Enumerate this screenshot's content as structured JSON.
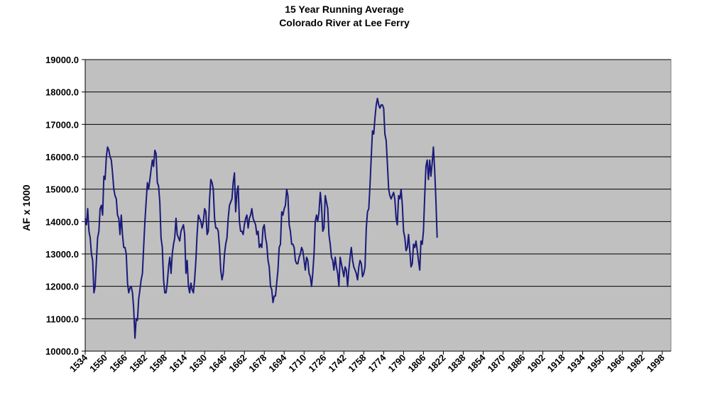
{
  "chart_data": {
    "type": "line",
    "title": "15  Year Running Average",
    "subtitle": "Colorado River at Lee Ferry",
    "ylabel": "AF x 1000",
    "xlabel": "",
    "xlim": [
      1534,
      2005
    ],
    "ylim": [
      10000,
      19000
    ],
    "y_ticks": [
      "10000.0",
      "11000.0",
      "12000.0",
      "13000.0",
      "14000.0",
      "15000.0",
      "16000.0",
      "17000.0",
      "18000.0",
      "19000.0"
    ],
    "x_ticks": [
      "1534",
      "1550",
      "1566",
      "1582",
      "1598",
      "1614",
      "1630",
      "1646",
      "1662",
      "1678",
      "1694",
      "1710",
      "1726",
      "1742",
      "1758",
      "1774",
      "1790",
      "1806",
      "1822",
      "1838",
      "1854",
      "1870",
      "1886",
      "1902",
      "1918",
      "1934",
      "1950",
      "1966",
      "1982",
      "1998"
    ],
    "grid": "horizontal",
    "plot_background": "#c0c0c0",
    "line_color": "#1a1a7a",
    "series": [
      {
        "points": [
          [
            1534,
            14100
          ],
          [
            1535,
            13900
          ],
          [
            1536,
            14400
          ],
          [
            1537,
            13700
          ],
          [
            1538,
            13500
          ],
          [
            1539,
            13000
          ],
          [
            1540,
            12800
          ],
          [
            1541,
            11800
          ],
          [
            1542,
            12000
          ],
          [
            1543,
            12800
          ],
          [
            1544,
            13500
          ],
          [
            1545,
            13700
          ],
          [
            1546,
            14400
          ],
          [
            1547,
            14500
          ],
          [
            1548,
            14200
          ],
          [
            1549,
            15400
          ],
          [
            1550,
            15300
          ],
          [
            1551,
            16000
          ],
          [
            1552,
            16300
          ],
          [
            1553,
            16200
          ],
          [
            1554,
            16000
          ],
          [
            1555,
            15900
          ],
          [
            1556,
            15500
          ],
          [
            1557,
            15000
          ],
          [
            1558,
            14800
          ],
          [
            1559,
            14700
          ],
          [
            1560,
            14200
          ],
          [
            1561,
            14100
          ],
          [
            1562,
            13600
          ],
          [
            1563,
            14200
          ],
          [
            1564,
            13600
          ],
          [
            1565,
            13200
          ],
          [
            1566,
            13200
          ],
          [
            1567,
            13000
          ],
          [
            1568,
            12100
          ],
          [
            1569,
            11800
          ],
          [
            1570,
            11950
          ],
          [
            1571,
            12000
          ],
          [
            1572,
            11800
          ],
          [
            1573,
            11300
          ],
          [
            1574,
            10400
          ],
          [
            1575,
            11000
          ],
          [
            1576,
            10950
          ],
          [
            1577,
            11600
          ],
          [
            1578,
            11900
          ],
          [
            1579,
            12200
          ],
          [
            1580,
            12400
          ],
          [
            1581,
            13200
          ],
          [
            1582,
            14000
          ],
          [
            1583,
            14600
          ],
          [
            1584,
            15200
          ],
          [
            1585,
            15000
          ],
          [
            1586,
            15300
          ],
          [
            1587,
            15600
          ],
          [
            1588,
            15900
          ],
          [
            1589,
            15700
          ],
          [
            1590,
            16200
          ],
          [
            1591,
            16100
          ],
          [
            1592,
            15200
          ],
          [
            1593,
            15100
          ],
          [
            1594,
            14600
          ],
          [
            1595,
            13500
          ],
          [
            1596,
            13200
          ],
          [
            1597,
            12200
          ],
          [
            1598,
            11800
          ],
          [
            1599,
            11800
          ],
          [
            1600,
            12100
          ],
          [
            1601,
            12600
          ],
          [
            1602,
            12900
          ],
          [
            1603,
            12400
          ],
          [
            1604,
            13000
          ],
          [
            1605,
            13300
          ],
          [
            1606,
            13500
          ],
          [
            1607,
            14100
          ],
          [
            1608,
            13600
          ],
          [
            1609,
            13500
          ],
          [
            1610,
            13400
          ],
          [
            1611,
            13700
          ],
          [
            1612,
            13800
          ],
          [
            1613,
            13900
          ],
          [
            1614,
            13600
          ],
          [
            1615,
            12400
          ],
          [
            1616,
            12800
          ],
          [
            1617,
            12000
          ],
          [
            1618,
            11800
          ],
          [
            1619,
            12100
          ],
          [
            1620,
            11900
          ],
          [
            1621,
            11800
          ],
          [
            1622,
            12200
          ],
          [
            1623,
            12800
          ],
          [
            1624,
            13600
          ],
          [
            1625,
            14200
          ],
          [
            1626,
            14100
          ],
          [
            1627,
            14000
          ],
          [
            1628,
            13800
          ],
          [
            1629,
            14000
          ],
          [
            1630,
            14400
          ],
          [
            1631,
            14300
          ],
          [
            1632,
            13600
          ],
          [
            1633,
            13700
          ],
          [
            1634,
            14700
          ],
          [
            1635,
            15300
          ],
          [
            1636,
            15200
          ],
          [
            1637,
            15000
          ],
          [
            1638,
            14100
          ],
          [
            1639,
            13800
          ],
          [
            1640,
            13800
          ],
          [
            1641,
            13700
          ],
          [
            1642,
            13200
          ],
          [
            1643,
            12500
          ],
          [
            1644,
            12200
          ],
          [
            1645,
            12400
          ],
          [
            1646,
            13000
          ],
          [
            1647,
            13300
          ],
          [
            1648,
            13500
          ],
          [
            1649,
            14100
          ],
          [
            1650,
            14500
          ],
          [
            1651,
            14600
          ],
          [
            1652,
            14700
          ],
          [
            1653,
            15200
          ],
          [
            1654,
            15500
          ],
          [
            1655,
            14300
          ],
          [
            1656,
            14900
          ],
          [
            1657,
            15100
          ],
          [
            1658,
            14000
          ],
          [
            1659,
            13700
          ],
          [
            1660,
            13700
          ],
          [
            1661,
            13600
          ],
          [
            1662,
            13900
          ],
          [
            1663,
            14100
          ],
          [
            1664,
            14200
          ],
          [
            1665,
            13800
          ],
          [
            1666,
            14100
          ],
          [
            1667,
            14200
          ],
          [
            1668,
            14400
          ],
          [
            1669,
            14100
          ],
          [
            1670,
            14000
          ],
          [
            1671,
            13900
          ],
          [
            1672,
            13600
          ],
          [
            1673,
            13700
          ],
          [
            1674,
            13200
          ],
          [
            1675,
            13300
          ],
          [
            1676,
            13200
          ],
          [
            1677,
            13800
          ],
          [
            1678,
            13900
          ],
          [
            1679,
            13500
          ],
          [
            1680,
            13300
          ],
          [
            1681,
            12800
          ],
          [
            1682,
            12600
          ],
          [
            1683,
            12000
          ],
          [
            1684,
            11900
          ],
          [
            1685,
            11500
          ],
          [
            1686,
            11700
          ],
          [
            1687,
            11700
          ],
          [
            1688,
            12100
          ],
          [
            1689,
            12500
          ],
          [
            1690,
            13200
          ],
          [
            1691,
            13300
          ],
          [
            1692,
            14300
          ],
          [
            1693,
            14200
          ],
          [
            1694,
            14400
          ],
          [
            1695,
            14500
          ],
          [
            1696,
            15000
          ],
          [
            1697,
            14800
          ],
          [
            1698,
            13900
          ],
          [
            1699,
            13700
          ],
          [
            1700,
            13300
          ],
          [
            1701,
            13300
          ],
          [
            1702,
            13200
          ],
          [
            1703,
            12800
          ],
          [
            1704,
            12700
          ],
          [
            1705,
            12700
          ],
          [
            1706,
            12900
          ],
          [
            1707,
            13000
          ],
          [
            1708,
            13200
          ],
          [
            1709,
            13100
          ],
          [
            1710,
            12800
          ],
          [
            1711,
            12500
          ],
          [
            1712,
            12900
          ],
          [
            1713,
            12800
          ],
          [
            1714,
            12400
          ],
          [
            1715,
            12300
          ],
          [
            1716,
            12000
          ],
          [
            1717,
            12400
          ],
          [
            1718,
            13000
          ],
          [
            1719,
            14000
          ],
          [
            1720,
            14200
          ],
          [
            1721,
            14000
          ],
          [
            1722,
            14300
          ],
          [
            1723,
            14900
          ],
          [
            1724,
            14500
          ],
          [
            1725,
            13700
          ],
          [
            1726,
            13800
          ],
          [
            1727,
            14800
          ],
          [
            1728,
            14600
          ],
          [
            1729,
            14400
          ],
          [
            1730,
            13600
          ],
          [
            1731,
            13300
          ],
          [
            1732,
            12900
          ],
          [
            1733,
            12800
          ],
          [
            1734,
            12500
          ],
          [
            1735,
            12900
          ],
          [
            1736,
            12600
          ],
          [
            1737,
            12400
          ],
          [
            1738,
            12000
          ],
          [
            1739,
            12900
          ],
          [
            1740,
            12700
          ],
          [
            1741,
            12500
          ],
          [
            1742,
            12300
          ],
          [
            1743,
            12600
          ],
          [
            1744,
            12500
          ],
          [
            1745,
            12000
          ],
          [
            1746,
            12500
          ],
          [
            1747,
            12900
          ],
          [
            1748,
            13200
          ],
          [
            1749,
            12800
          ],
          [
            1750,
            12600
          ],
          [
            1751,
            12500
          ],
          [
            1752,
            12400
          ],
          [
            1753,
            12200
          ],
          [
            1754,
            12600
          ],
          [
            1755,
            12800
          ],
          [
            1756,
            12700
          ],
          [
            1757,
            12300
          ],
          [
            1758,
            12400
          ],
          [
            1759,
            12600
          ],
          [
            1760,
            13800
          ],
          [
            1761,
            14300
          ],
          [
            1762,
            14400
          ],
          [
            1763,
            15100
          ],
          [
            1764,
            16000
          ],
          [
            1765,
            16800
          ],
          [
            1766,
            16700
          ],
          [
            1767,
            17200
          ],
          [
            1768,
            17600
          ],
          [
            1769,
            17800
          ],
          [
            1770,
            17600
          ],
          [
            1771,
            17500
          ],
          [
            1772,
            17600
          ],
          [
            1773,
            17600
          ],
          [
            1774,
            17500
          ],
          [
            1775,
            16700
          ],
          [
            1776,
            16500
          ],
          [
            1777,
            15800
          ],
          [
            1778,
            15000
          ],
          [
            1779,
            14800
          ],
          [
            1780,
            14700
          ],
          [
            1781,
            14800
          ],
          [
            1782,
            14900
          ],
          [
            1783,
            14700
          ],
          [
            1784,
            14100
          ],
          [
            1785,
            13900
          ],
          [
            1786,
            14800
          ],
          [
            1787,
            14700
          ],
          [
            1788,
            15000
          ],
          [
            1789,
            14500
          ],
          [
            1790,
            13700
          ],
          [
            1791,
            13500
          ],
          [
            1792,
            13100
          ],
          [
            1793,
            13200
          ],
          [
            1794,
            13600
          ],
          [
            1795,
            13100
          ],
          [
            1796,
            12600
          ],
          [
            1797,
            12700
          ],
          [
            1798,
            13300
          ],
          [
            1799,
            13200
          ],
          [
            1800,
            13400
          ],
          [
            1801,
            13100
          ],
          [
            1802,
            12800
          ],
          [
            1803,
            12500
          ],
          [
            1804,
            13400
          ],
          [
            1805,
            13300
          ],
          [
            1806,
            13700
          ],
          [
            1807,
            14800
          ],
          [
            1808,
            15700
          ],
          [
            1809,
            15900
          ],
          [
            1810,
            15300
          ],
          [
            1811,
            15900
          ],
          [
            1812,
            15400
          ],
          [
            1813,
            15800
          ],
          [
            1814,
            16300
          ],
          [
            1815,
            15600
          ],
          [
            1816,
            14700
          ],
          [
            1817,
            13500
          ]
        ]
      }
    ]
  }
}
